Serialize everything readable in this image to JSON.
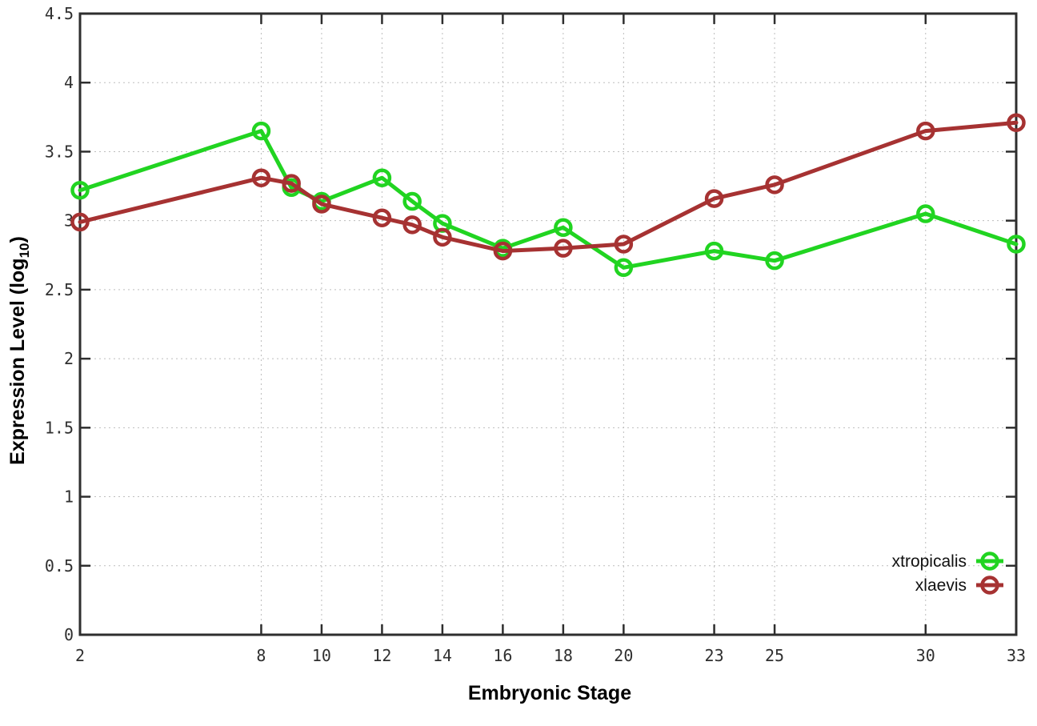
{
  "figure": {
    "background": "#ffffff",
    "border_color": "#2e2e2e",
    "grid_color": "#bdbdbd",
    "tick_color": "#2e2e2e"
  },
  "chart_data": {
    "type": "line",
    "title": "",
    "xlabel": "Embryonic Stage",
    "ylabel": "Expression Level (log10)",
    "ylabel_parts": {
      "main": "Expression Level (log",
      "sub": "10",
      "end": ")"
    },
    "xlim": [
      2,
      33
    ],
    "ylim": [
      0,
      4.5
    ],
    "xticks": [
      2,
      8,
      10,
      12,
      14,
      16,
      18,
      20,
      23,
      25,
      30,
      33
    ],
    "yticks": [
      0,
      0.5,
      1,
      1.5,
      2,
      2.5,
      3,
      3.5,
      4,
      4.5
    ],
    "grid": true,
    "grid_style": "dotted",
    "legend_position": "bottom-right",
    "marker": "open-circle",
    "x": [
      2,
      8,
      9,
      10,
      12,
      13,
      14,
      16,
      18,
      20,
      23,
      25,
      30,
      33
    ],
    "series": [
      {
        "name": "xtropicalis",
        "color": "#21d421",
        "values": [
          3.22,
          3.65,
          3.24,
          3.14,
          3.31,
          3.14,
          2.98,
          2.8,
          2.95,
          2.66,
          2.78,
          2.71,
          3.05,
          2.83
        ]
      },
      {
        "name": "xlaevis",
        "color": "#a63232",
        "values": [
          2.99,
          3.31,
          3.27,
          3.12,
          3.02,
          2.97,
          2.88,
          2.78,
          2.8,
          2.83,
          3.16,
          3.26,
          3.65,
          3.71
        ]
      }
    ]
  }
}
